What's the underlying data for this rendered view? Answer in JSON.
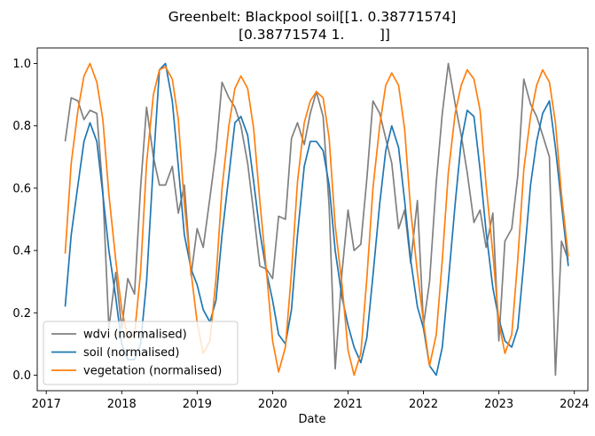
{
  "chart_data": {
    "type": "line",
    "title_line1": "Greenbelt: Blackpool soil[[1.         0.38771574]",
    "title_line2": " [0.38771574 1.        ]]",
    "xlabel": "Date",
    "ylabel": "",
    "xlim": [
      2016.88,
      2024.18
    ],
    "ylim": [
      -0.05,
      1.05
    ],
    "x_ticks": [
      2017,
      2018,
      2019,
      2020,
      2021,
      2022,
      2023,
      2024
    ],
    "x_tick_labels": [
      "2017",
      "2018",
      "2019",
      "2020",
      "2021",
      "2022",
      "2023",
      "2024"
    ],
    "y_ticks": [
      0.0,
      0.2,
      0.4,
      0.6,
      0.8,
      1.0
    ],
    "y_tick_labels": [
      "0.0",
      "0.2",
      "0.4",
      "0.6",
      "0.8",
      "1.0"
    ],
    "grid": false,
    "legend_position": "lower-left",
    "series": [
      {
        "name": "wdvi (normalised)",
        "color": "#808080",
        "points": [
          [
            2017.25,
            0.75
          ],
          [
            2017.33,
            0.89
          ],
          [
            2017.42,
            0.88
          ],
          [
            2017.5,
            0.82
          ],
          [
            2017.58,
            0.85
          ],
          [
            2017.67,
            0.84
          ],
          [
            2017.75,
            0.59
          ],
          [
            2017.83,
            0.15
          ],
          [
            2017.92,
            0.33
          ],
          [
            2018.0,
            0.15
          ],
          [
            2018.08,
            0.31
          ],
          [
            2018.17,
            0.26
          ],
          [
            2018.25,
            0.6
          ],
          [
            2018.33,
            0.86
          ],
          [
            2018.42,
            0.7
          ],
          [
            2018.5,
            0.61
          ],
          [
            2018.58,
            0.61
          ],
          [
            2018.67,
            0.67
          ],
          [
            2018.75,
            0.52
          ],
          [
            2018.83,
            0.61
          ],
          [
            2018.92,
            0.32
          ],
          [
            2019.0,
            0.47
          ],
          [
            2019.08,
            0.41
          ],
          [
            2019.17,
            0.57
          ],
          [
            2019.25,
            0.72
          ],
          [
            2019.33,
            0.94
          ],
          [
            2019.42,
            0.89
          ],
          [
            2019.5,
            0.86
          ],
          [
            2019.58,
            0.8
          ],
          [
            2019.67,
            0.68
          ],
          [
            2019.75,
            0.52
          ],
          [
            2019.83,
            0.35
          ],
          [
            2019.92,
            0.34
          ],
          [
            2020.0,
            0.31
          ],
          [
            2020.08,
            0.51
          ],
          [
            2020.17,
            0.5
          ],
          [
            2020.25,
            0.76
          ],
          [
            2020.33,
            0.81
          ],
          [
            2020.42,
            0.74
          ],
          [
            2020.5,
            0.84
          ],
          [
            2020.58,
            0.91
          ],
          [
            2020.67,
            0.83
          ],
          [
            2020.75,
            0.54
          ],
          [
            2020.83,
            0.02
          ],
          [
            2020.92,
            0.33
          ],
          [
            2021.0,
            0.53
          ],
          [
            2021.08,
            0.4
          ],
          [
            2021.17,
            0.42
          ],
          [
            2021.25,
            0.63
          ],
          [
            2021.33,
            0.88
          ],
          [
            2021.42,
            0.84
          ],
          [
            2021.5,
            0.76
          ],
          [
            2021.58,
            0.68
          ],
          [
            2021.67,
            0.47
          ],
          [
            2021.75,
            0.53
          ],
          [
            2021.83,
            0.36
          ],
          [
            2021.92,
            0.56
          ],
          [
            2022.0,
            0.16
          ],
          [
            2022.08,
            0.3
          ],
          [
            2022.17,
            0.62
          ],
          [
            2022.25,
            0.84
          ],
          [
            2022.33,
            1.0
          ],
          [
            2022.42,
            0.87
          ],
          [
            2022.5,
            0.77
          ],
          [
            2022.58,
            0.65
          ],
          [
            2022.67,
            0.49
          ],
          [
            2022.75,
            0.53
          ],
          [
            2022.83,
            0.41
          ],
          [
            2022.92,
            0.52
          ],
          [
            2023.0,
            0.11
          ],
          [
            2023.08,
            0.43
          ],
          [
            2023.17,
            0.47
          ],
          [
            2023.25,
            0.64
          ],
          [
            2023.33,
            0.95
          ],
          [
            2023.42,
            0.87
          ],
          [
            2023.5,
            0.83
          ],
          [
            2023.58,
            0.77
          ],
          [
            2023.67,
            0.7
          ],
          [
            2023.75,
            0.0
          ],
          [
            2023.83,
            0.43
          ],
          [
            2023.92,
            0.37
          ]
        ]
      },
      {
        "name": "soil (normalised)",
        "color": "#1f77b4",
        "points": [
          [
            2017.25,
            0.22
          ],
          [
            2017.33,
            0.45
          ],
          [
            2017.42,
            0.61
          ],
          [
            2017.5,
            0.75
          ],
          [
            2017.58,
            0.81
          ],
          [
            2017.67,
            0.75
          ],
          [
            2017.75,
            0.58
          ],
          [
            2017.83,
            0.4
          ],
          [
            2017.92,
            0.25
          ],
          [
            2018.0,
            0.1
          ],
          [
            2018.08,
            0.05
          ],
          [
            2018.17,
            0.05
          ],
          [
            2018.25,
            0.1
          ],
          [
            2018.33,
            0.3
          ],
          [
            2018.42,
            0.68
          ],
          [
            2018.5,
            0.98
          ],
          [
            2018.58,
            1.0
          ],
          [
            2018.67,
            0.88
          ],
          [
            2018.75,
            0.67
          ],
          [
            2018.83,
            0.45
          ],
          [
            2018.92,
            0.34
          ],
          [
            2019.0,
            0.29
          ],
          [
            2019.08,
            0.21
          ],
          [
            2019.17,
            0.17
          ],
          [
            2019.25,
            0.24
          ],
          [
            2019.33,
            0.45
          ],
          [
            2019.42,
            0.64
          ],
          [
            2019.5,
            0.81
          ],
          [
            2019.58,
            0.83
          ],
          [
            2019.67,
            0.77
          ],
          [
            2019.75,
            0.62
          ],
          [
            2019.83,
            0.46
          ],
          [
            2019.92,
            0.33
          ],
          [
            2020.0,
            0.24
          ],
          [
            2020.08,
            0.13
          ],
          [
            2020.17,
            0.1
          ],
          [
            2020.25,
            0.21
          ],
          [
            2020.33,
            0.45
          ],
          [
            2020.42,
            0.67
          ],
          [
            2020.5,
            0.75
          ],
          [
            2020.58,
            0.75
          ],
          [
            2020.67,
            0.72
          ],
          [
            2020.75,
            0.61
          ],
          [
            2020.83,
            0.4
          ],
          [
            2020.92,
            0.25
          ],
          [
            2021.0,
            0.16
          ],
          [
            2021.08,
            0.09
          ],
          [
            2021.17,
            0.04
          ],
          [
            2021.25,
            0.12
          ],
          [
            2021.33,
            0.32
          ],
          [
            2021.42,
            0.55
          ],
          [
            2021.5,
            0.72
          ],
          [
            2021.58,
            0.8
          ],
          [
            2021.67,
            0.73
          ],
          [
            2021.75,
            0.56
          ],
          [
            2021.83,
            0.37
          ],
          [
            2021.92,
            0.22
          ],
          [
            2022.0,
            0.15
          ],
          [
            2022.08,
            0.03
          ],
          [
            2022.17,
            0.0
          ],
          [
            2022.25,
            0.09
          ],
          [
            2022.33,
            0.3
          ],
          [
            2022.42,
            0.55
          ],
          [
            2022.5,
            0.75
          ],
          [
            2022.58,
            0.85
          ],
          [
            2022.67,
            0.83
          ],
          [
            2022.75,
            0.66
          ],
          [
            2022.83,
            0.46
          ],
          [
            2022.92,
            0.28
          ],
          [
            2023.0,
            0.18
          ],
          [
            2023.08,
            0.11
          ],
          [
            2023.17,
            0.09
          ],
          [
            2023.25,
            0.15
          ],
          [
            2023.33,
            0.36
          ],
          [
            2023.42,
            0.61
          ],
          [
            2023.5,
            0.75
          ],
          [
            2023.58,
            0.84
          ],
          [
            2023.67,
            0.88
          ],
          [
            2023.75,
            0.73
          ],
          [
            2023.83,
            0.55
          ],
          [
            2023.92,
            0.35
          ]
        ]
      },
      {
        "name": "vegetation (normalised)",
        "color": "#ff7f0e",
        "points": [
          [
            2017.25,
            0.39
          ],
          [
            2017.33,
            0.68
          ],
          [
            2017.42,
            0.85
          ],
          [
            2017.5,
            0.96
          ],
          [
            2017.58,
            1.0
          ],
          [
            2017.67,
            0.94
          ],
          [
            2017.75,
            0.82
          ],
          [
            2017.83,
            0.58
          ],
          [
            2017.92,
            0.37
          ],
          [
            2018.0,
            0.21
          ],
          [
            2018.08,
            0.12
          ],
          [
            2018.17,
            0.13
          ],
          [
            2018.25,
            0.33
          ],
          [
            2018.33,
            0.68
          ],
          [
            2018.42,
            0.9
          ],
          [
            2018.5,
            0.98
          ],
          [
            2018.58,
            0.99
          ],
          [
            2018.67,
            0.95
          ],
          [
            2018.75,
            0.82
          ],
          [
            2018.83,
            0.55
          ],
          [
            2018.92,
            0.33
          ],
          [
            2019.0,
            0.17
          ],
          [
            2019.08,
            0.07
          ],
          [
            2019.17,
            0.11
          ],
          [
            2019.25,
            0.31
          ],
          [
            2019.33,
            0.6
          ],
          [
            2019.42,
            0.8
          ],
          [
            2019.5,
            0.92
          ],
          [
            2019.58,
            0.96
          ],
          [
            2019.67,
            0.92
          ],
          [
            2019.75,
            0.79
          ],
          [
            2019.83,
            0.56
          ],
          [
            2019.92,
            0.33
          ],
          [
            2020.0,
            0.11
          ],
          [
            2020.08,
            0.01
          ],
          [
            2020.17,
            0.09
          ],
          [
            2020.25,
            0.33
          ],
          [
            2020.33,
            0.62
          ],
          [
            2020.42,
            0.81
          ],
          [
            2020.5,
            0.88
          ],
          [
            2020.58,
            0.91
          ],
          [
            2020.67,
            0.89
          ],
          [
            2020.75,
            0.76
          ],
          [
            2020.83,
            0.48
          ],
          [
            2020.92,
            0.29
          ],
          [
            2021.0,
            0.08
          ],
          [
            2021.08,
            0.0
          ],
          [
            2021.17,
            0.07
          ],
          [
            2021.25,
            0.31
          ],
          [
            2021.33,
            0.6
          ],
          [
            2021.42,
            0.8
          ],
          [
            2021.5,
            0.93
          ],
          [
            2021.58,
            0.97
          ],
          [
            2021.67,
            0.93
          ],
          [
            2021.75,
            0.79
          ],
          [
            2021.83,
            0.53
          ],
          [
            2021.92,
            0.33
          ],
          [
            2022.0,
            0.17
          ],
          [
            2022.08,
            0.03
          ],
          [
            2022.17,
            0.13
          ],
          [
            2022.25,
            0.37
          ],
          [
            2022.33,
            0.65
          ],
          [
            2022.42,
            0.84
          ],
          [
            2022.5,
            0.93
          ],
          [
            2022.58,
            0.98
          ],
          [
            2022.67,
            0.95
          ],
          [
            2022.75,
            0.85
          ],
          [
            2022.83,
            0.61
          ],
          [
            2022.92,
            0.39
          ],
          [
            2023.0,
            0.17
          ],
          [
            2023.08,
            0.07
          ],
          [
            2023.17,
            0.13
          ],
          [
            2023.25,
            0.37
          ],
          [
            2023.33,
            0.66
          ],
          [
            2023.42,
            0.83
          ],
          [
            2023.5,
            0.93
          ],
          [
            2023.58,
            0.98
          ],
          [
            2023.67,
            0.94
          ],
          [
            2023.75,
            0.81
          ],
          [
            2023.83,
            0.58
          ],
          [
            2023.92,
            0.38
          ]
        ]
      }
    ]
  }
}
